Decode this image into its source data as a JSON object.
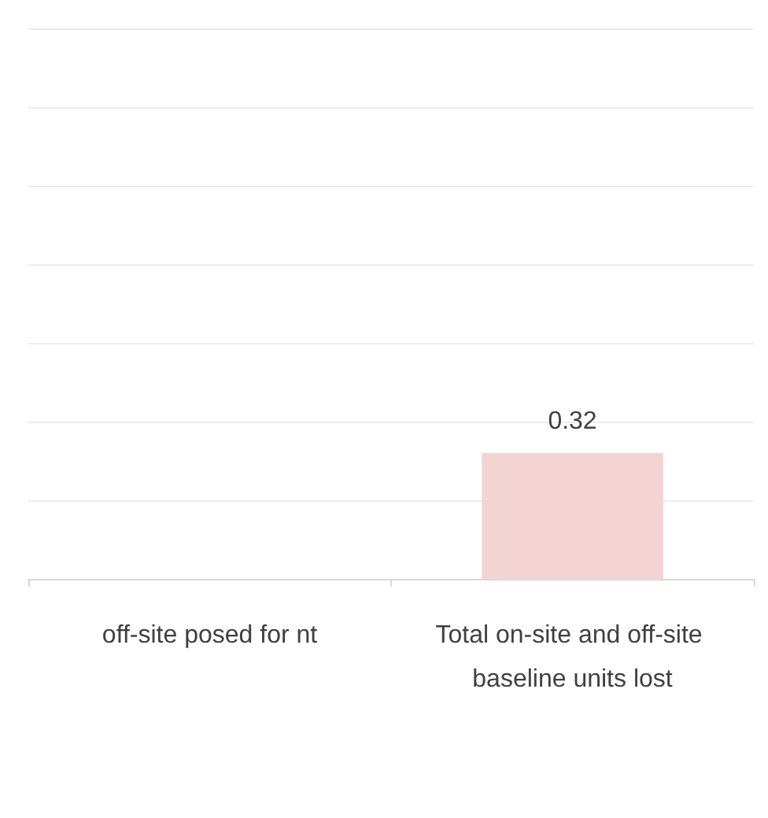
{
  "chart_data": {
    "type": "bar",
    "categories": [
      "off-site posed for nt",
      "Total on-site and off-site baseline units lost"
    ],
    "series": [
      {
        "color": "#f4d3d3",
        "values": [
          null,
          0.32
        ]
      }
    ],
    "data_labels": true,
    "grid": "y",
    "tick_labels": "x",
    "ylim": [
      0,
      1.4
    ],
    "yticks": [
      {
        "value": 0,
        "label": null
      },
      {
        "value": 0.2,
        "label": null
      },
      {
        "value": 0.4,
        "label": null
      },
      {
        "value": 0.6,
        "label": null
      },
      {
        "value": 0.8,
        "label": null
      },
      {
        "value": 1,
        "label": null
      },
      {
        "value": 1.2,
        "label": null
      },
      {
        "value": 1.4,
        "label": null
      }
    ]
  }
}
